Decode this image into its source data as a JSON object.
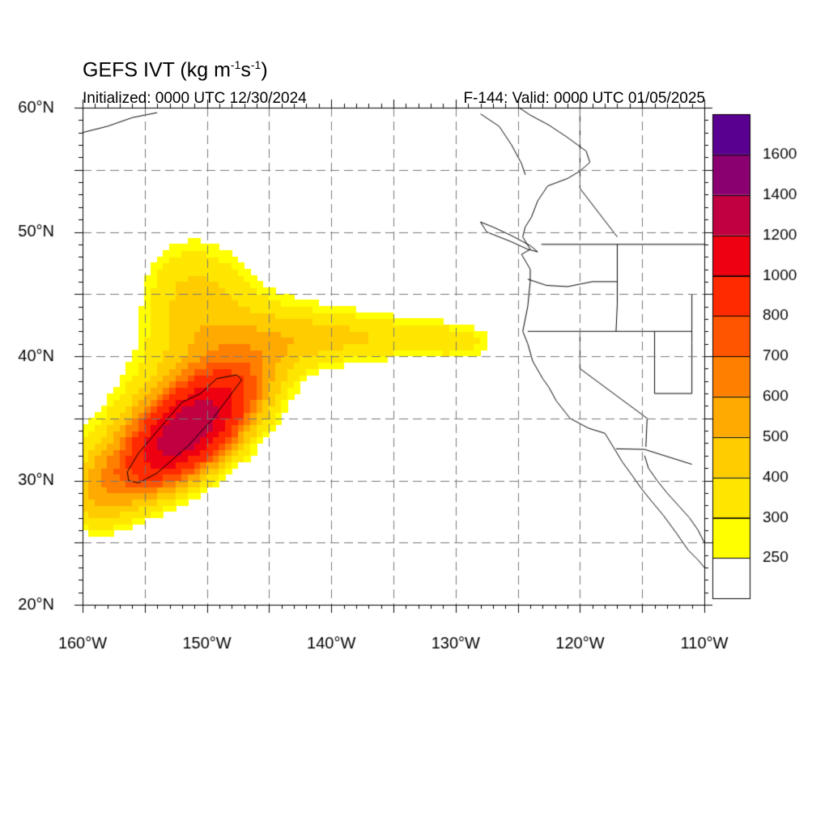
{
  "header": {
    "title_main": "GEFS IVT (kg m",
    "title_exp1": "-1",
    "title_mid": "s",
    "title_exp2": "-1",
    "title_close": ")",
    "initialized": "Initialized: 0000 UTC 12/30/2024",
    "valid": "F-144: Valid: 0000 UTC 01/05/2025"
  },
  "map": {
    "projection": "cylindrical-equidistant",
    "lon_range": [
      -160,
      -110
    ],
    "lat_range": [
      20,
      60
    ],
    "gridlines": "dashed",
    "lon_labels": [
      "160°W",
      "150°W",
      "140°W",
      "130°W",
      "120°W",
      "110°W"
    ],
    "lat_labels": [
      "20°N",
      "30°N",
      "40°N",
      "50°N",
      "60°N"
    ]
  },
  "colorbar": {
    "labels": [
      "250",
      "300",
      "400",
      "500",
      "600",
      "700",
      "800",
      "1000",
      "1200",
      "1400",
      "1600"
    ],
    "colors": [
      "#ffffff",
      "#ffff00",
      "#ffe600",
      "#ffcc00",
      "#ffaa00",
      "#ff8000",
      "#ff5500",
      "#ff2a00",
      "#ee0011",
      "#c00040",
      "#8a0070",
      "#5a0090"
    ]
  },
  "contour_level": 1000
}
